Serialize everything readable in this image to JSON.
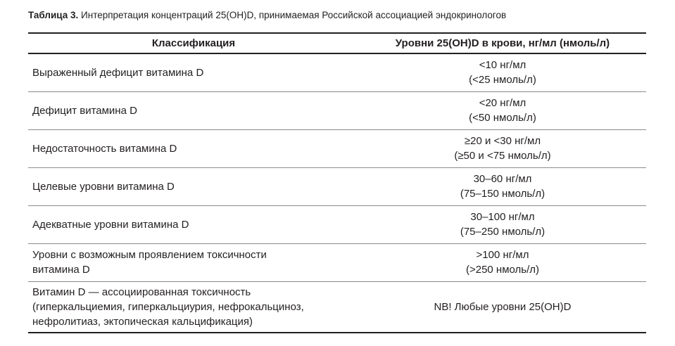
{
  "caption": {
    "label": "Таблица 3.",
    "text": " Интерпретация концентраций 25(OH)D, принимаемая Российской ассоциацией эндокринологов"
  },
  "table": {
    "headers": [
      "Классификация",
      "Уровни 25(OH)D в крови, нг/мл (нмоль/л)"
    ],
    "rows": [
      {
        "class": [
          "Выраженный дефицит витамина D"
        ],
        "level": [
          "<10 нг/мл",
          "(<25 нмоль/л)"
        ]
      },
      {
        "class": [
          "Дефицит витамина D"
        ],
        "level": [
          "<20 нг/мл",
          "(<50 нмоль/л)"
        ]
      },
      {
        "class": [
          "Недостаточность витамина D"
        ],
        "level": [
          "≥20 и <30 нг/мл",
          "(≥50 и <75 нмоль/л)"
        ]
      },
      {
        "class": [
          "Целевые уровни витамина D"
        ],
        "level": [
          "30–60 нг/мл",
          "(75–150 нмоль/л)"
        ]
      },
      {
        "class": [
          "Адекватные уровни витамина D"
        ],
        "level": [
          "30–100 нг/мл",
          "(75–250 нмоль/л)"
        ]
      },
      {
        "class": [
          "Уровни с возможным проявлением токсичности",
          "витамина D"
        ],
        "level": [
          ">100 нг/мл",
          "(>250 нмоль/л)"
        ]
      },
      {
        "class": [
          "Витамин D — ассоциированная токсичность",
          "(гиперкальциемия, гиперкальциурия, нефрокальциноз,",
          "нефролитиаз, эктопическая кальцификация)"
        ],
        "level": [
          "NB! Любые уровни 25(OH)D"
        ]
      }
    ]
  }
}
